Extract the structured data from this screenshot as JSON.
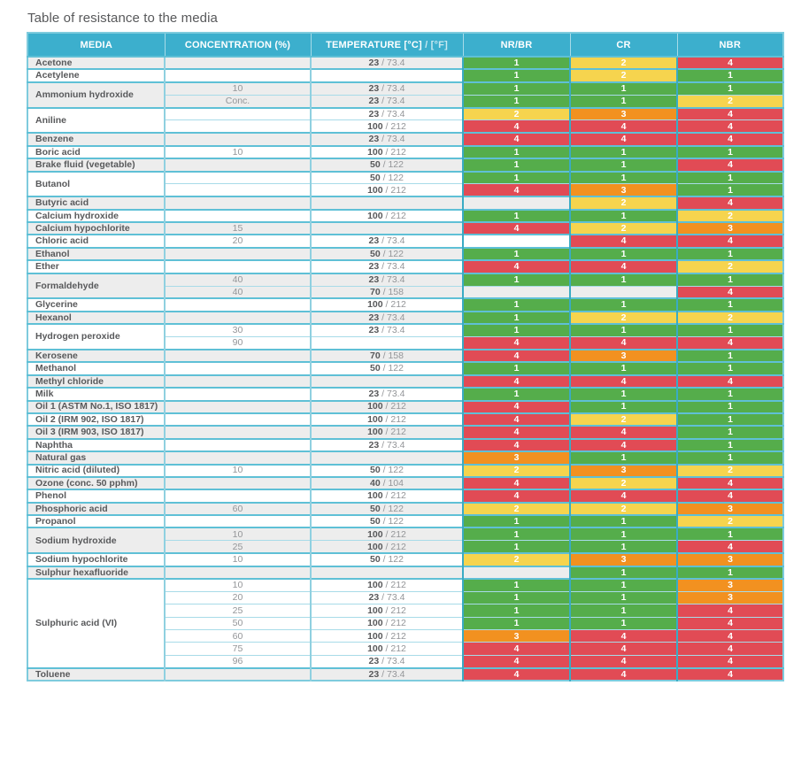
{
  "title": "Table of resistance to the media",
  "colors": {
    "header_bg": "#3cafcd",
    "row_shade": "#ededed",
    "row_plain": "#ffffff",
    "border_strong": "#3aabc4",
    "border_light": "#a8dbe8",
    "text_dark": "#58595b",
    "text_gray": "#939598"
  },
  "rating_colors": {
    "1": "#55ad4b",
    "2": "#f6d44e",
    "3": "#f29120",
    "4": "#e14b55"
  },
  "table": {
    "headers": {
      "media": "MEDIA",
      "concentration": "CONCENTRATION (%)",
      "temperature_c": "TEMPERATURE [°C]",
      "temperature_f": "/ [°F]",
      "nr_br": "NR/BR",
      "cr": "CR",
      "nbr": "NBR"
    },
    "groups": [
      {
        "media": "Acetone",
        "rows": [
          {
            "concentration": "",
            "temp_c": "23",
            "temp_f": "73.4",
            "ratings": {
              "nr_br": 1,
              "cr": 2,
              "nbr": 4
            }
          }
        ]
      },
      {
        "media": "Acetylene",
        "rows": [
          {
            "concentration": "",
            "temp_c": "",
            "temp_f": "",
            "ratings": {
              "nr_br": 1,
              "cr": 2,
              "nbr": 1
            }
          }
        ]
      },
      {
        "media": "Ammonium hydroxide",
        "rows": [
          {
            "concentration": "10",
            "temp_c": "23",
            "temp_f": "73.4",
            "ratings": {
              "nr_br": 1,
              "cr": 1,
              "nbr": 1
            }
          },
          {
            "concentration": "Conc.",
            "temp_c": "23",
            "temp_f": "73.4",
            "ratings": {
              "nr_br": 1,
              "cr": 1,
              "nbr": 2
            }
          }
        ]
      },
      {
        "media": "Aniline",
        "rows": [
          {
            "concentration": "",
            "temp_c": "23",
            "temp_f": "73.4",
            "ratings": {
              "nr_br": 2,
              "cr": 3,
              "nbr": 4
            }
          },
          {
            "concentration": "",
            "temp_c": "100",
            "temp_f": "212",
            "ratings": {
              "nr_br": 4,
              "cr": 4,
              "nbr": 4
            }
          }
        ]
      },
      {
        "media": "Benzene",
        "rows": [
          {
            "concentration": "",
            "temp_c": "23",
            "temp_f": "73.4",
            "ratings": {
              "nr_br": 4,
              "cr": 4,
              "nbr": 4
            }
          }
        ]
      },
      {
        "media": "Boric acid",
        "rows": [
          {
            "concentration": "10",
            "temp_c": "100",
            "temp_f": "212",
            "ratings": {
              "nr_br": 1,
              "cr": 1,
              "nbr": 1
            }
          }
        ]
      },
      {
        "media": "Brake fluid (vegetable)",
        "rows": [
          {
            "concentration": "",
            "temp_c": "50",
            "temp_f": "122",
            "ratings": {
              "nr_br": 1,
              "cr": 1,
              "nbr": 4
            }
          }
        ]
      },
      {
        "media": "Butanol",
        "rows": [
          {
            "concentration": "",
            "temp_c": "50",
            "temp_f": "122",
            "ratings": {
              "nr_br": 1,
              "cr": 1,
              "nbr": 1
            }
          },
          {
            "concentration": "",
            "temp_c": "100",
            "temp_f": "212",
            "ratings": {
              "nr_br": 4,
              "cr": 3,
              "nbr": 1
            }
          }
        ]
      },
      {
        "media": "Butyric acid",
        "rows": [
          {
            "concentration": "",
            "temp_c": "",
            "temp_f": "",
            "ratings": {
              "nr_br": null,
              "cr": 2,
              "nbr": 4
            }
          }
        ]
      },
      {
        "media": "Calcium hydroxide",
        "rows": [
          {
            "concentration": "",
            "temp_c": "100",
            "temp_f": "212",
            "ratings": {
              "nr_br": 1,
              "cr": 1,
              "nbr": 2
            }
          }
        ]
      },
      {
        "media": "Calcium hypochlorite",
        "rows": [
          {
            "concentration": "15",
            "temp_c": "",
            "temp_f": "",
            "ratings": {
              "nr_br": 4,
              "cr": 2,
              "nbr": 3
            }
          }
        ]
      },
      {
        "media": "Chloric acid",
        "rows": [
          {
            "concentration": "20",
            "temp_c": "23",
            "temp_f": "73.4",
            "ratings": {
              "nr_br": null,
              "cr": 4,
              "nbr": 4
            }
          }
        ]
      },
      {
        "media": "Ethanol",
        "rows": [
          {
            "concentration": "",
            "temp_c": "50",
            "temp_f": "122",
            "ratings": {
              "nr_br": 1,
              "cr": 1,
              "nbr": 1
            }
          }
        ]
      },
      {
        "media": "Ether",
        "rows": [
          {
            "concentration": "",
            "temp_c": "23",
            "temp_f": "73.4",
            "ratings": {
              "nr_br": 4,
              "cr": 4,
              "nbr": 2
            }
          }
        ]
      },
      {
        "media": "Formaldehyde",
        "rows": [
          {
            "concentration": "40",
            "temp_c": "23",
            "temp_f": "73.4",
            "ratings": {
              "nr_br": 1,
              "cr": 1,
              "nbr": 1
            }
          },
          {
            "concentration": "40",
            "temp_c": "70",
            "temp_f": "158",
            "ratings": {
              "nr_br": null,
              "cr": null,
              "nbr": 4
            }
          }
        ]
      },
      {
        "media": "Glycerine",
        "rows": [
          {
            "concentration": "",
            "temp_c": "100",
            "temp_f": "212",
            "ratings": {
              "nr_br": 1,
              "cr": 1,
              "nbr": 1
            }
          }
        ]
      },
      {
        "media": "Hexanol",
        "rows": [
          {
            "concentration": "",
            "temp_c": "23",
            "temp_f": "73.4",
            "ratings": {
              "nr_br": 1,
              "cr": 2,
              "nbr": 2
            }
          }
        ]
      },
      {
        "media": "Hydrogen peroxide",
        "rows": [
          {
            "concentration": "30",
            "temp_c": "23",
            "temp_f": "73.4",
            "ratings": {
              "nr_br": 1,
              "cr": 1,
              "nbr": 1
            }
          },
          {
            "concentration": "90",
            "temp_c": "",
            "temp_f": "",
            "ratings": {
              "nr_br": 4,
              "cr": 4,
              "nbr": 4
            }
          }
        ]
      },
      {
        "media": "Kerosene",
        "rows": [
          {
            "concentration": "",
            "temp_c": "70",
            "temp_f": "158",
            "ratings": {
              "nr_br": 4,
              "cr": 3,
              "nbr": 1
            }
          }
        ]
      },
      {
        "media": "Methanol",
        "rows": [
          {
            "concentration": "",
            "temp_c": "50",
            "temp_f": "122",
            "ratings": {
              "nr_br": 1,
              "cr": 1,
              "nbr": 1
            }
          }
        ]
      },
      {
        "media": "Methyl chloride",
        "rows": [
          {
            "concentration": "",
            "temp_c": "",
            "temp_f": "",
            "ratings": {
              "nr_br": 4,
              "cr": 4,
              "nbr": 4
            }
          }
        ]
      },
      {
        "media": "Milk",
        "rows": [
          {
            "concentration": "",
            "temp_c": "23",
            "temp_f": "73.4",
            "ratings": {
              "nr_br": 1,
              "cr": 1,
              "nbr": 1
            }
          }
        ]
      },
      {
        "media": "Oil 1 (ASTM No.1, ISO 1817)",
        "rows": [
          {
            "concentration": "",
            "temp_c": "100",
            "temp_f": "212",
            "ratings": {
              "nr_br": 4,
              "cr": 1,
              "nbr": 1
            }
          }
        ]
      },
      {
        "media": "Oil 2 (IRM 902, ISO 1817)",
        "rows": [
          {
            "concentration": "",
            "temp_c": "100",
            "temp_f": "212",
            "ratings": {
              "nr_br": 4,
              "cr": 2,
              "nbr": 1
            }
          }
        ]
      },
      {
        "media": "Oil 3 (IRM 903, ISO 1817)",
        "rows": [
          {
            "concentration": "",
            "temp_c": "100",
            "temp_f": "212",
            "ratings": {
              "nr_br": 4,
              "cr": 4,
              "nbr": 1
            }
          }
        ]
      },
      {
        "media": "Naphtha",
        "rows": [
          {
            "concentration": "",
            "temp_c": "23",
            "temp_f": "73.4",
            "ratings": {
              "nr_br": 4,
              "cr": 4,
              "nbr": 1
            }
          }
        ]
      },
      {
        "media": "Natural gas",
        "rows": [
          {
            "concentration": "",
            "temp_c": "",
            "temp_f": "",
            "ratings": {
              "nr_br": 3,
              "cr": 1,
              "nbr": 1
            }
          }
        ]
      },
      {
        "media": "Nitric acid (diluted)",
        "rows": [
          {
            "concentration": "10",
            "temp_c": "50",
            "temp_f": "122",
            "ratings": {
              "nr_br": 2,
              "cr": 3,
              "nbr": 2
            }
          }
        ]
      },
      {
        "media": "Ozone (conc. 50 pphm)",
        "rows": [
          {
            "concentration": "",
            "temp_c": "40",
            "temp_f": "104",
            "ratings": {
              "nr_br": 4,
              "cr": 2,
              "nbr": 4
            }
          }
        ]
      },
      {
        "media": "Phenol",
        "rows": [
          {
            "concentration": "",
            "temp_c": "100",
            "temp_f": "212",
            "ratings": {
              "nr_br": 4,
              "cr": 4,
              "nbr": 4
            }
          }
        ]
      },
      {
        "media": "Phosphoric acid",
        "rows": [
          {
            "concentration": "60",
            "temp_c": "50",
            "temp_f": "122",
            "ratings": {
              "nr_br": 2,
              "cr": 2,
              "nbr": 3
            }
          }
        ]
      },
      {
        "media": "Propanol",
        "rows": [
          {
            "concentration": "",
            "temp_c": "50",
            "temp_f": "122",
            "ratings": {
              "nr_br": 1,
              "cr": 1,
              "nbr": 2
            }
          }
        ]
      },
      {
        "media": "Sodium hydroxide",
        "rows": [
          {
            "concentration": "10",
            "temp_c": "100",
            "temp_f": "212",
            "ratings": {
              "nr_br": 1,
              "cr": 1,
              "nbr": 1
            }
          },
          {
            "concentration": "25",
            "temp_c": "100",
            "temp_f": "212",
            "ratings": {
              "nr_br": 1,
              "cr": 1,
              "nbr": 4
            }
          }
        ]
      },
      {
        "media": "Sodium hypochlorite",
        "rows": [
          {
            "concentration": "10",
            "temp_c": "50",
            "temp_f": "122",
            "ratings": {
              "nr_br": 2,
              "cr": 3,
              "nbr": 3
            }
          }
        ]
      },
      {
        "media": "Sulphur hexafluoride",
        "rows": [
          {
            "concentration": "",
            "temp_c": "",
            "temp_f": "",
            "ratings": {
              "nr_br": null,
              "cr": 1,
              "nbr": 1
            }
          }
        ]
      },
      {
        "media": "Sulphuric acid (VI)",
        "rows": [
          {
            "concentration": "10",
            "temp_c": "100",
            "temp_f": "212",
            "ratings": {
              "nr_br": 1,
              "cr": 1,
              "nbr": 3
            }
          },
          {
            "concentration": "20",
            "temp_c": "23",
            "temp_f": "73.4",
            "ratings": {
              "nr_br": 1,
              "cr": 1,
              "nbr": 3
            }
          },
          {
            "concentration": "25",
            "temp_c": "100",
            "temp_f": "212",
            "ratings": {
              "nr_br": 1,
              "cr": 1,
              "nbr": 4
            }
          },
          {
            "concentration": "50",
            "temp_c": "100",
            "temp_f": "212",
            "ratings": {
              "nr_br": 1,
              "cr": 1,
              "nbr": 4
            }
          },
          {
            "concentration": "60",
            "temp_c": "100",
            "temp_f": "212",
            "ratings": {
              "nr_br": 3,
              "cr": 4,
              "nbr": 4
            }
          },
          {
            "concentration": "75",
            "temp_c": "100",
            "temp_f": "212",
            "ratings": {
              "nr_br": 4,
              "cr": 4,
              "nbr": 4
            }
          },
          {
            "concentration": "96",
            "temp_c": "23",
            "temp_f": "73.4",
            "ratings": {
              "nr_br": 4,
              "cr": 4,
              "nbr": 4
            }
          }
        ]
      },
      {
        "media": "Toluene",
        "rows": [
          {
            "concentration": "",
            "temp_c": "23",
            "temp_f": "73.4",
            "ratings": {
              "nr_br": 4,
              "cr": 4,
              "nbr": 4
            }
          }
        ]
      }
    ]
  }
}
